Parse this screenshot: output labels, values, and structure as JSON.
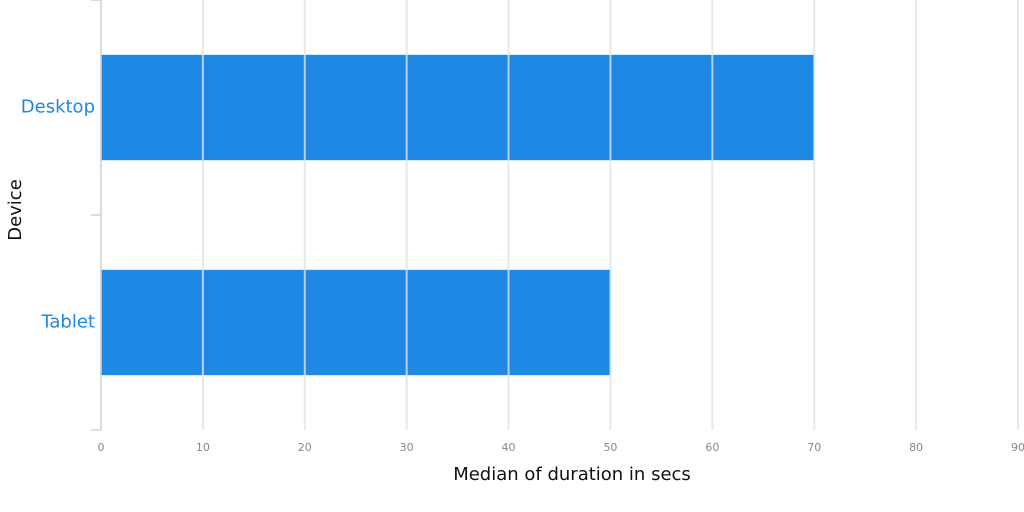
{
  "chart_data": {
    "type": "bar",
    "orientation": "horizontal",
    "categories": [
      "Desktop",
      "Tablet"
    ],
    "values": [
      70,
      50
    ],
    "color": "#1e88e5",
    "xlim": [
      0,
      90
    ],
    "xticks": [
      0,
      10,
      20,
      30,
      40,
      50,
      60,
      70,
      80,
      90
    ],
    "grid": true,
    "x_label": "Median of duration in secs",
    "y_label": "Device"
  }
}
